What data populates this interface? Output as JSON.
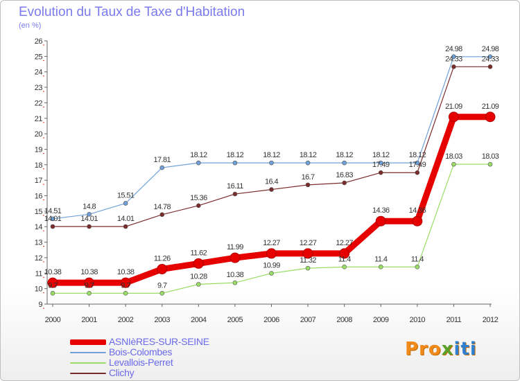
{
  "title": "Evolution du Taux de Taxe d'Habitation",
  "unit": "(en %)",
  "logo": "Proxiti",
  "chart_data": {
    "type": "line",
    "title": "Evolution du Taux de Taxe d'Habitation",
    "ylabel": "(en %)",
    "xlabel": "",
    "x": [
      2000,
      2001,
      2002,
      2003,
      2004,
      2005,
      2006,
      2007,
      2008,
      2009,
      2010,
      2011,
      2012
    ],
    "ylim": [
      9,
      26
    ],
    "yticks": [
      9,
      10,
      11,
      12,
      13,
      14,
      15,
      16,
      17,
      18,
      19,
      20,
      21,
      22,
      23,
      24,
      25,
      26
    ],
    "grid": false,
    "legend_position": "bottom-left",
    "series": [
      {
        "name": "ASNIèRES-SUR-SEINE",
        "color": "#e60000",
        "values": [
          10.38,
          10.38,
          10.38,
          11.26,
          11.62,
          11.99,
          12.27,
          12.27,
          12.27,
          14.36,
          14.36,
          21.09,
          21.09
        ]
      },
      {
        "name": "Bois-Colombes",
        "color": "#6fa0d8",
        "values": [
          14.51,
          14.8,
          15.51,
          17.81,
          18.12,
          18.12,
          18.12,
          18.12,
          18.12,
          18.12,
          18.12,
          24.98,
          24.98
        ]
      },
      {
        "name": "Levallois-Perret",
        "color": "#99dd66",
        "values": [
          9.7,
          9.7,
          9.7,
          9.7,
          10.28,
          10.38,
          10.99,
          11.32,
          11.4,
          11.4,
          11.4,
          18.03,
          18.03
        ]
      },
      {
        "name": "Clichy",
        "color": "#7a2b2b",
        "values": [
          14.01,
          14.01,
          14.01,
          14.78,
          15.36,
          16.11,
          16.4,
          16.7,
          16.83,
          17.49,
          17.49,
          24.33,
          24.33
        ]
      }
    ]
  }
}
